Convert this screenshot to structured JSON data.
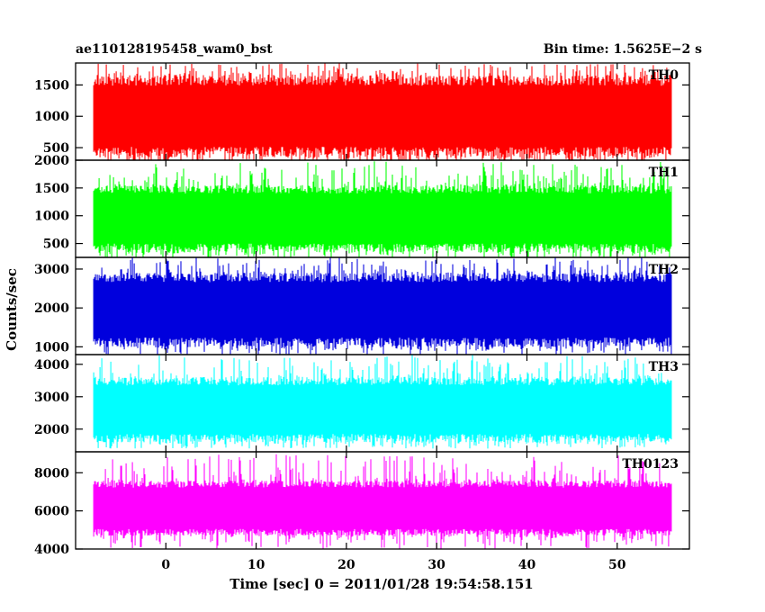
{
  "header": {
    "left_title": "ae110128195458_wam0_bst",
    "right_title": "Bin time: 1.5625E−2 s"
  },
  "chart_data": {
    "type": "line",
    "title": "ae110128195458_wam0_bst",
    "bin_time": "Bin time: 1.5625E−2 s",
    "xlabel": "Time [sec] 0 = 2011/01/28 19:54:58.151",
    "ylabel": "Counts/sec",
    "xlim": [
      -10,
      58
    ],
    "x_ticks": [
      0,
      10,
      20,
      30,
      40,
      50
    ],
    "data_x_range": [
      -8,
      56
    ],
    "grid": false,
    "colors": {
      "TH0": "#ff0000",
      "TH1": "#00ff00",
      "TH2": "#0000dd",
      "TH3": "#00ffff",
      "TH0123": "#ff00ff"
    },
    "panels": [
      {
        "series": "TH0",
        "label": "TH0",
        "ylim": [
          300,
          1850
        ],
        "y_ticks": [
          500,
          1000,
          1500
        ],
        "band_low": 350,
        "band_high": 1650,
        "mean": 1000,
        "spike_min": 200,
        "spike_max": 1850
      },
      {
        "series": "TH1",
        "label": "TH1",
        "ylim": [
          250,
          2000
        ],
        "y_ticks": [
          500,
          1000,
          1500,
          2000
        ],
        "band_low": 350,
        "band_high": 1550,
        "mean": 950,
        "spike_min": 200,
        "spike_max": 1980
      },
      {
        "series": "TH2",
        "label": "TH2",
        "ylim": [
          800,
          3300
        ],
        "y_ticks": [
          1000,
          2000,
          3000
        ],
        "band_low": 1000,
        "band_high": 2900,
        "mean": 1950,
        "spike_min": 750,
        "spike_max": 3300
      },
      {
        "series": "TH3",
        "label": "TH3",
        "ylim": [
          1300,
          4300
        ],
        "y_ticks": [
          2000,
          3000,
          4000
        ],
        "band_low": 1600,
        "band_high": 3600,
        "mean": 2600,
        "spike_min": 1400,
        "spike_max": 4300
      },
      {
        "series": "TH0123",
        "label": "TH0123",
        "ylim": [
          4000,
          9100
        ],
        "y_ticks": [
          4000,
          6000,
          8000
        ],
        "band_low": 4700,
        "band_high": 7600,
        "mean": 6100,
        "spike_min": 4000,
        "spike_max": 9000
      }
    ]
  }
}
